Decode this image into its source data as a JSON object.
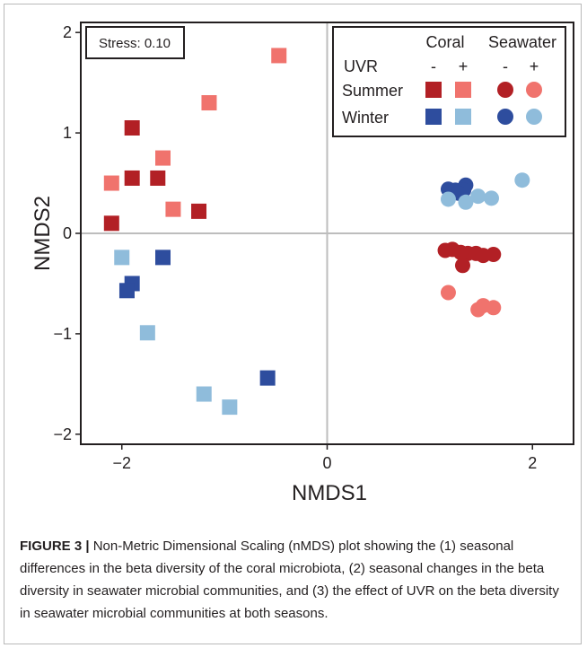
{
  "chart_data": {
    "type": "scatter",
    "xlabel": "NMDS1",
    "ylabel": "NMDS2",
    "xlim": [
      -2.4,
      2.4
    ],
    "ylim": [
      -2.1,
      2.1
    ],
    "x_ticks": [
      -2,
      0,
      2
    ],
    "x_tick_labels": [
      "−2",
      "0",
      "2"
    ],
    "y_ticks": [
      -2,
      -1,
      0,
      1,
      2
    ],
    "y_tick_labels": [
      "−2",
      "−1",
      "0",
      "1",
      "2"
    ],
    "reference_lines": {
      "x": 0,
      "y": 0
    },
    "grid": false,
    "stress_label": "Stress: 0.10",
    "legend": {
      "position": "top-right",
      "group_headers": [
        "Coral",
        "Seawater"
      ],
      "uvr_label": "UVR",
      "uvr_levels": [
        "-",
        "+",
        "-",
        "+"
      ],
      "row_labels": [
        "Summer",
        "Winter"
      ]
    },
    "series": [
      {
        "sample": "Coral",
        "season": "Summer",
        "uvr": "-",
        "marker": "square",
        "color": "#b22025",
        "points": [
          [
            -1.9,
            1.05
          ],
          [
            -1.9,
            0.55
          ],
          [
            -1.65,
            0.55
          ],
          [
            -1.25,
            0.22
          ],
          [
            -2.1,
            0.1
          ]
        ]
      },
      {
        "sample": "Coral",
        "season": "Summer",
        "uvr": "+",
        "marker": "square",
        "color": "#f0736d",
        "points": [
          [
            -0.47,
            1.77
          ],
          [
            -1.15,
            1.3
          ],
          [
            -1.6,
            0.75
          ],
          [
            -2.1,
            0.5
          ],
          [
            -1.5,
            0.24
          ]
        ]
      },
      {
        "sample": "Coral",
        "season": "Winter",
        "uvr": "-",
        "marker": "square",
        "color": "#2e4d9e",
        "points": [
          [
            -1.6,
            -0.24
          ],
          [
            -1.9,
            -0.5
          ],
          [
            -1.95,
            -0.57
          ],
          [
            -0.58,
            -1.44
          ]
        ]
      },
      {
        "sample": "Coral",
        "season": "Winter",
        "uvr": "+",
        "marker": "square",
        "color": "#8fbcdb",
        "points": [
          [
            -2.0,
            -0.24
          ],
          [
            -1.75,
            -0.99
          ],
          [
            -1.2,
            -1.6
          ],
          [
            -0.95,
            -1.73
          ]
        ]
      },
      {
        "sample": "Seawater",
        "season": "Summer",
        "uvr": "-",
        "marker": "circle",
        "color": "#b22025",
        "points": [
          [
            1.15,
            -0.17
          ],
          [
            1.22,
            -0.16
          ],
          [
            1.3,
            -0.19
          ],
          [
            1.37,
            -0.2
          ],
          [
            1.45,
            -0.2
          ],
          [
            1.52,
            -0.22
          ],
          [
            1.62,
            -0.21
          ],
          [
            1.32,
            -0.32
          ]
        ]
      },
      {
        "sample": "Seawater",
        "season": "Summer",
        "uvr": "+",
        "marker": "circle",
        "color": "#f0736d",
        "points": [
          [
            1.18,
            -0.59
          ],
          [
            1.52,
            -0.72
          ],
          [
            1.47,
            -0.76
          ],
          [
            1.62,
            -0.74
          ]
        ]
      },
      {
        "sample": "Seawater",
        "season": "Winter",
        "uvr": "-",
        "marker": "circle",
        "color": "#2e4d9e",
        "points": [
          [
            1.18,
            0.44
          ],
          [
            1.25,
            0.43
          ],
          [
            1.35,
            0.48
          ],
          [
            1.33,
            0.43
          ],
          [
            1.28,
            0.4
          ]
        ]
      },
      {
        "sample": "Seawater",
        "season": "Winter",
        "uvr": "+",
        "marker": "circle",
        "color": "#8fbcdb",
        "points": [
          [
            1.18,
            0.34
          ],
          [
            1.35,
            0.31
          ],
          [
            1.47,
            0.37
          ],
          [
            1.6,
            0.35
          ],
          [
            1.9,
            0.53
          ]
        ]
      }
    ]
  },
  "caption": {
    "label": "FIGURE 3 |",
    "text": "Non-Metric Dimensional Scaling (nMDS) plot showing the (1) seasonal differences in the beta diversity of the coral microbiota, (2) seasonal changes in the beta diversity in seawater microbial communities, and (3) the effect of UVR on the beta diversity in seawater microbial communities at both seasons."
  },
  "colors": {
    "summer_minus": "#b22025",
    "summer_plus": "#f0736d",
    "winter_minus": "#2e4d9e",
    "winter_plus": "#8fbcdb",
    "reference_line": "#bdbdbd"
  }
}
